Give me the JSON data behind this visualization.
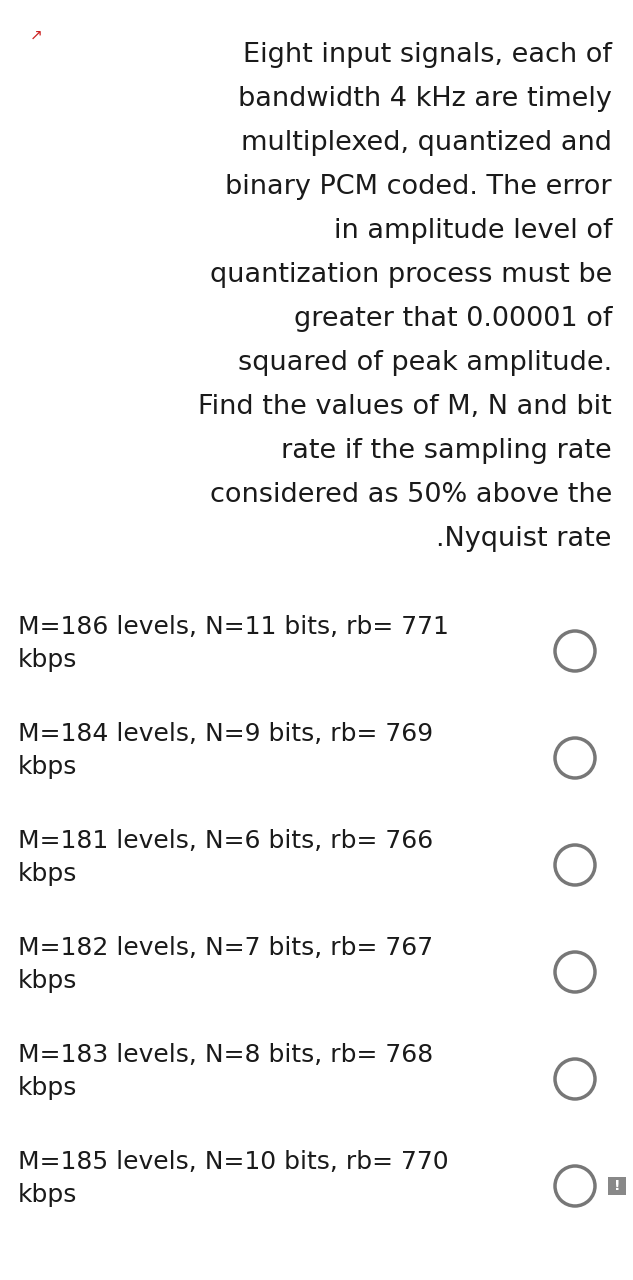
{
  "background_color": "#ffffff",
  "question_lines": [
    "Eight input signals, each of",
    "bandwidth 4 kHz are timely",
    "multiplexed, quantized and",
    "binary PCM coded. The error",
    "in amplitude level of",
    "quantization process must be",
    "greater that 0.00001 of",
    "squared of peak amplitude.",
    "Find the values of M, N and bit",
    "rate if the sampling rate",
    "considered as 50% above the",
    ".Nyquist rate"
  ],
  "options": [
    "M=186 levels, N=11 bits, rb= 771\nkbps",
    "M=184 levels, N=9 bits, rb= 769\nkbps",
    "M=181 levels, N=6 bits, rb= 766\nkbps",
    "M=182 levels, N=7 bits, rb= 767\nkbps",
    "M=183 levels, N=8 bits, rb= 768\nkbps",
    "M=185 levels, N=10 bits, rb= 770\nkbps"
  ],
  "text_color": "#1a1a1a",
  "radio_color": "#777777",
  "question_fontsize": 19.5,
  "option_fontsize": 18.0,
  "fig_width": 6.33,
  "fig_height": 12.8,
  "corner_arrow_color": "#cc2222"
}
